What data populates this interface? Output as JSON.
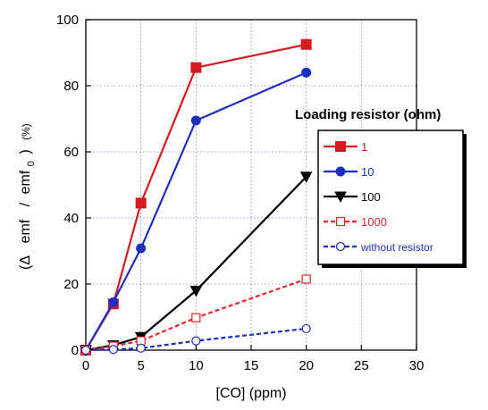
{
  "chart_data": {
    "type": "line",
    "xlabel": "[CO] (ppm)",
    "ylabel_parts": [
      "(Δ",
      "emf",
      "/",
      "emf",
      "0",
      ")",
      "(%)"
    ],
    "xlim": [
      0,
      30
    ],
    "ylim": [
      0,
      100
    ],
    "xticks": [
      0,
      5,
      10,
      15,
      20,
      25,
      30
    ],
    "yticks": [
      0,
      20,
      40,
      60,
      80,
      100
    ],
    "grid": true,
    "legend_title": "Loading resistor (ohm)",
    "legend_position": "right",
    "series": [
      {
        "name": "1",
        "color": "#d71920",
        "dash": false,
        "marker": "square-filled",
        "points": [
          [
            0,
            0
          ],
          [
            2.5,
            14
          ],
          [
            5,
            44.5
          ],
          [
            10,
            85.5
          ],
          [
            20,
            92.5
          ]
        ]
      },
      {
        "name": "10",
        "color": "#1c2fc0",
        "dash": false,
        "marker": "circle-filled",
        "points": [
          [
            0,
            0
          ],
          [
            2.5,
            14.5
          ],
          [
            5,
            30.8
          ],
          [
            10,
            69.5
          ],
          [
            20,
            84
          ]
        ]
      },
      {
        "name": "100",
        "color": "#000000",
        "dash": false,
        "marker": "triangle-down-filled",
        "points": [
          [
            0,
            0
          ],
          [
            2.5,
            1.5
          ],
          [
            5,
            4
          ],
          [
            10,
            18
          ],
          [
            20,
            52.5
          ]
        ]
      },
      {
        "name": "1000",
        "color": "#e8262b",
        "dash": true,
        "marker": "square-open",
        "points": [
          [
            0,
            0
          ],
          [
            2.5,
            1.2
          ],
          [
            5,
            2.8
          ],
          [
            10,
            9.8
          ],
          [
            20,
            21.5
          ]
        ]
      },
      {
        "name": "without resistor",
        "color": "#1c2fc0",
        "dash": true,
        "marker": "circle-open",
        "points": [
          [
            0,
            0
          ],
          [
            2.5,
            0.2
          ],
          [
            5,
            0.6
          ],
          [
            10,
            2.8
          ],
          [
            20,
            6.5
          ]
        ]
      }
    ]
  }
}
